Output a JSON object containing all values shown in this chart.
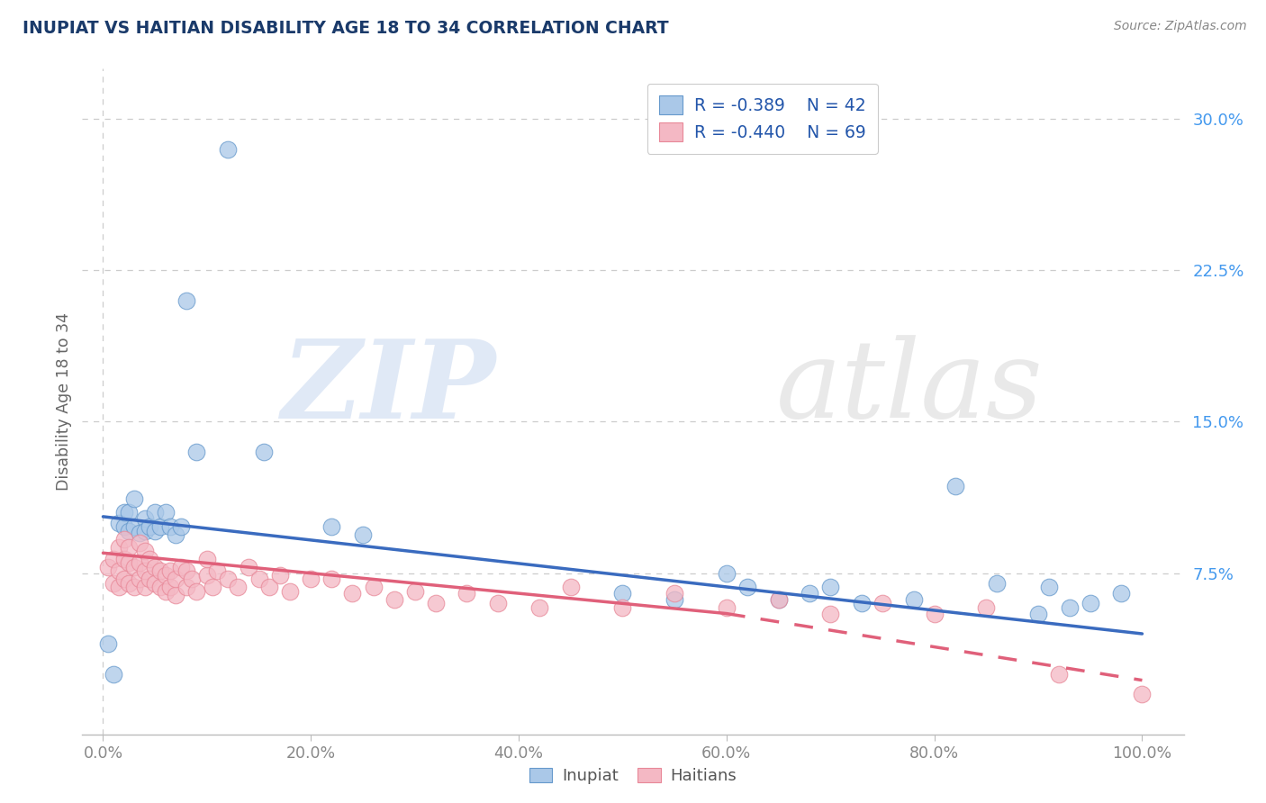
{
  "title": "INUPIAT VS HAITIAN DISABILITY AGE 18 TO 34 CORRELATION CHART",
  "source_text": "Source: ZipAtlas.com",
  "ylabel": "Disability Age 18 to 34",
  "xlim": [
    -0.02,
    1.04
  ],
  "ylim": [
    -0.005,
    0.325
  ],
  "y_ticks": [
    0.075,
    0.15,
    0.225,
    0.3
  ],
  "y_tick_labels": [
    "7.5%",
    "15.0%",
    "22.5%",
    "30.0%"
  ],
  "x_ticks": [
    0.0,
    0.2,
    0.4,
    0.6,
    0.8,
    1.0
  ],
  "x_tick_labels": [
    "0.0%",
    "20.0%",
    "40.0%",
    "60.0%",
    "80.0%",
    "100.0%"
  ],
  "inupiat_color": "#aac8e8",
  "haitian_color": "#f4b8c4",
  "inupiat_edge_color": "#6699cc",
  "haitian_edge_color": "#e88898",
  "inupiat_line_color": "#3a6bbf",
  "haitian_line_color": "#e0607a",
  "background_color": "#ffffff",
  "grid_color": "#cccccc",
  "title_color": "#1a3a6a",
  "source_color": "#888888",
  "ytick_color": "#4499ee",
  "xtick_color": "#888888",
  "legend_label_color": "#2255aa",
  "inupiat_x": [
    0.005,
    0.01,
    0.015,
    0.02,
    0.02,
    0.025,
    0.025,
    0.03,
    0.03,
    0.035,
    0.04,
    0.04,
    0.045,
    0.05,
    0.05,
    0.055,
    0.06,
    0.065,
    0.07,
    0.075,
    0.08,
    0.09,
    0.12,
    0.155,
    0.22,
    0.25,
    0.5,
    0.55,
    0.6,
    0.62,
    0.65,
    0.68,
    0.7,
    0.73,
    0.78,
    0.82,
    0.86,
    0.9,
    0.91,
    0.93,
    0.95,
    0.98
  ],
  "inupiat_y": [
    0.04,
    0.025,
    0.1,
    0.098,
    0.105,
    0.096,
    0.105,
    0.098,
    0.112,
    0.095,
    0.102,
    0.096,
    0.098,
    0.096,
    0.105,
    0.098,
    0.105,
    0.098,
    0.094,
    0.098,
    0.21,
    0.135,
    0.285,
    0.135,
    0.098,
    0.094,
    0.065,
    0.062,
    0.075,
    0.068,
    0.062,
    0.065,
    0.068,
    0.06,
    0.062,
    0.118,
    0.07,
    0.055,
    0.068,
    0.058,
    0.06,
    0.065
  ],
  "haitian_x": [
    0.005,
    0.01,
    0.01,
    0.015,
    0.015,
    0.015,
    0.02,
    0.02,
    0.02,
    0.025,
    0.025,
    0.025,
    0.03,
    0.03,
    0.035,
    0.035,
    0.035,
    0.04,
    0.04,
    0.04,
    0.045,
    0.045,
    0.05,
    0.05,
    0.055,
    0.055,
    0.06,
    0.06,
    0.065,
    0.065,
    0.07,
    0.07,
    0.075,
    0.08,
    0.08,
    0.085,
    0.09,
    0.1,
    0.1,
    0.105,
    0.11,
    0.12,
    0.13,
    0.14,
    0.15,
    0.16,
    0.17,
    0.18,
    0.2,
    0.22,
    0.24,
    0.26,
    0.28,
    0.3,
    0.32,
    0.35,
    0.38,
    0.42,
    0.45,
    0.5,
    0.55,
    0.6,
    0.65,
    0.7,
    0.75,
    0.8,
    0.85,
    0.92,
    1.0
  ],
  "haitian_y": [
    0.078,
    0.07,
    0.082,
    0.068,
    0.076,
    0.088,
    0.072,
    0.082,
    0.092,
    0.07,
    0.08,
    0.088,
    0.068,
    0.078,
    0.072,
    0.08,
    0.09,
    0.068,
    0.076,
    0.086,
    0.072,
    0.082,
    0.07,
    0.078,
    0.068,
    0.076,
    0.066,
    0.074,
    0.068,
    0.076,
    0.064,
    0.072,
    0.078,
    0.068,
    0.076,
    0.072,
    0.066,
    0.074,
    0.082,
    0.068,
    0.076,
    0.072,
    0.068,
    0.078,
    0.072,
    0.068,
    0.074,
    0.066,
    0.072,
    0.072,
    0.065,
    0.068,
    0.062,
    0.066,
    0.06,
    0.065,
    0.06,
    0.058,
    0.068,
    0.058,
    0.065,
    0.058,
    0.062,
    0.055,
    0.06,
    0.055,
    0.058,
    0.025,
    0.015
  ],
  "inupiat_trendline": [
    0.0,
    1.0,
    0.103,
    0.045
  ],
  "haitian_trendline_solid": [
    0.0,
    0.6,
    0.085,
    0.055
  ],
  "haitian_trendline_dash": [
    0.6,
    1.0,
    0.055,
    0.022
  ]
}
